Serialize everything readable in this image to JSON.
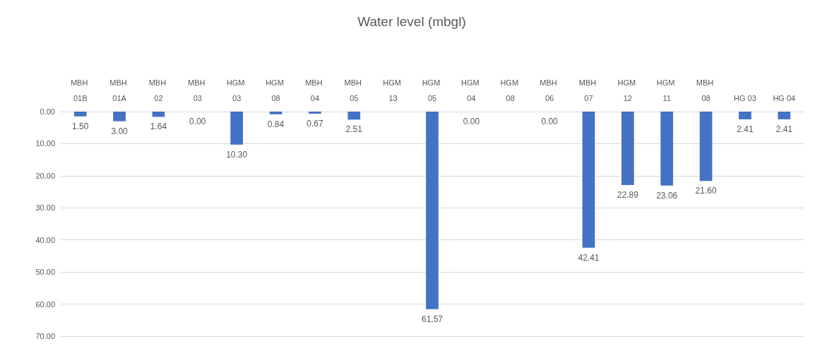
{
  "chart_data": {
    "type": "bar",
    "title": "Water level (mbgl)",
    "categories": [
      "MBH 01B",
      "MBH 01A",
      "MBH 02",
      "MBH 03",
      "HGM 03",
      "HGM 08",
      "MBH 04",
      "MBH 05",
      "HGM 13",
      "HGM 05",
      "HGM 04",
      "HGM 08",
      "MBH 06",
      "MBH 07",
      "HGM 12",
      "HGM 11",
      "MBH 08",
      "HG 03",
      "HG 04"
    ],
    "values": [
      1.5,
      3.0,
      1.64,
      0,
      10.3,
      0.84,
      0.67,
      2.51,
      null,
      61.57,
      0,
      null,
      0,
      42.41,
      22.89,
      23.06,
      21.6,
      2.41,
      2.41
    ],
    "value_labels": [
      "1.50",
      "3.00",
      "1.64",
      "0.00",
      "10.30",
      "0.84",
      "0.67",
      "2.51",
      null,
      "61.57",
      "0.00",
      null,
      "0.00",
      "42.41",
      "22.89",
      "23.06",
      "21.60",
      "2.41",
      "2.41"
    ],
    "color": "#4472c4",
    "ylim": [
      70,
      0
    ],
    "yticks": [
      {
        "value": 0,
        "label": "0.00"
      },
      {
        "value": 10,
        "label": "10.00"
      },
      {
        "value": 20,
        "label": "20.00"
      },
      {
        "value": 30,
        "label": "30.00"
      },
      {
        "value": 40,
        "label": "40.00"
      },
      {
        "value": 50,
        "label": "50.00"
      },
      {
        "value": 60,
        "label": "60.00"
      },
      {
        "value": 70,
        "label": "70.00"
      }
    ],
    "grid": "y"
  }
}
